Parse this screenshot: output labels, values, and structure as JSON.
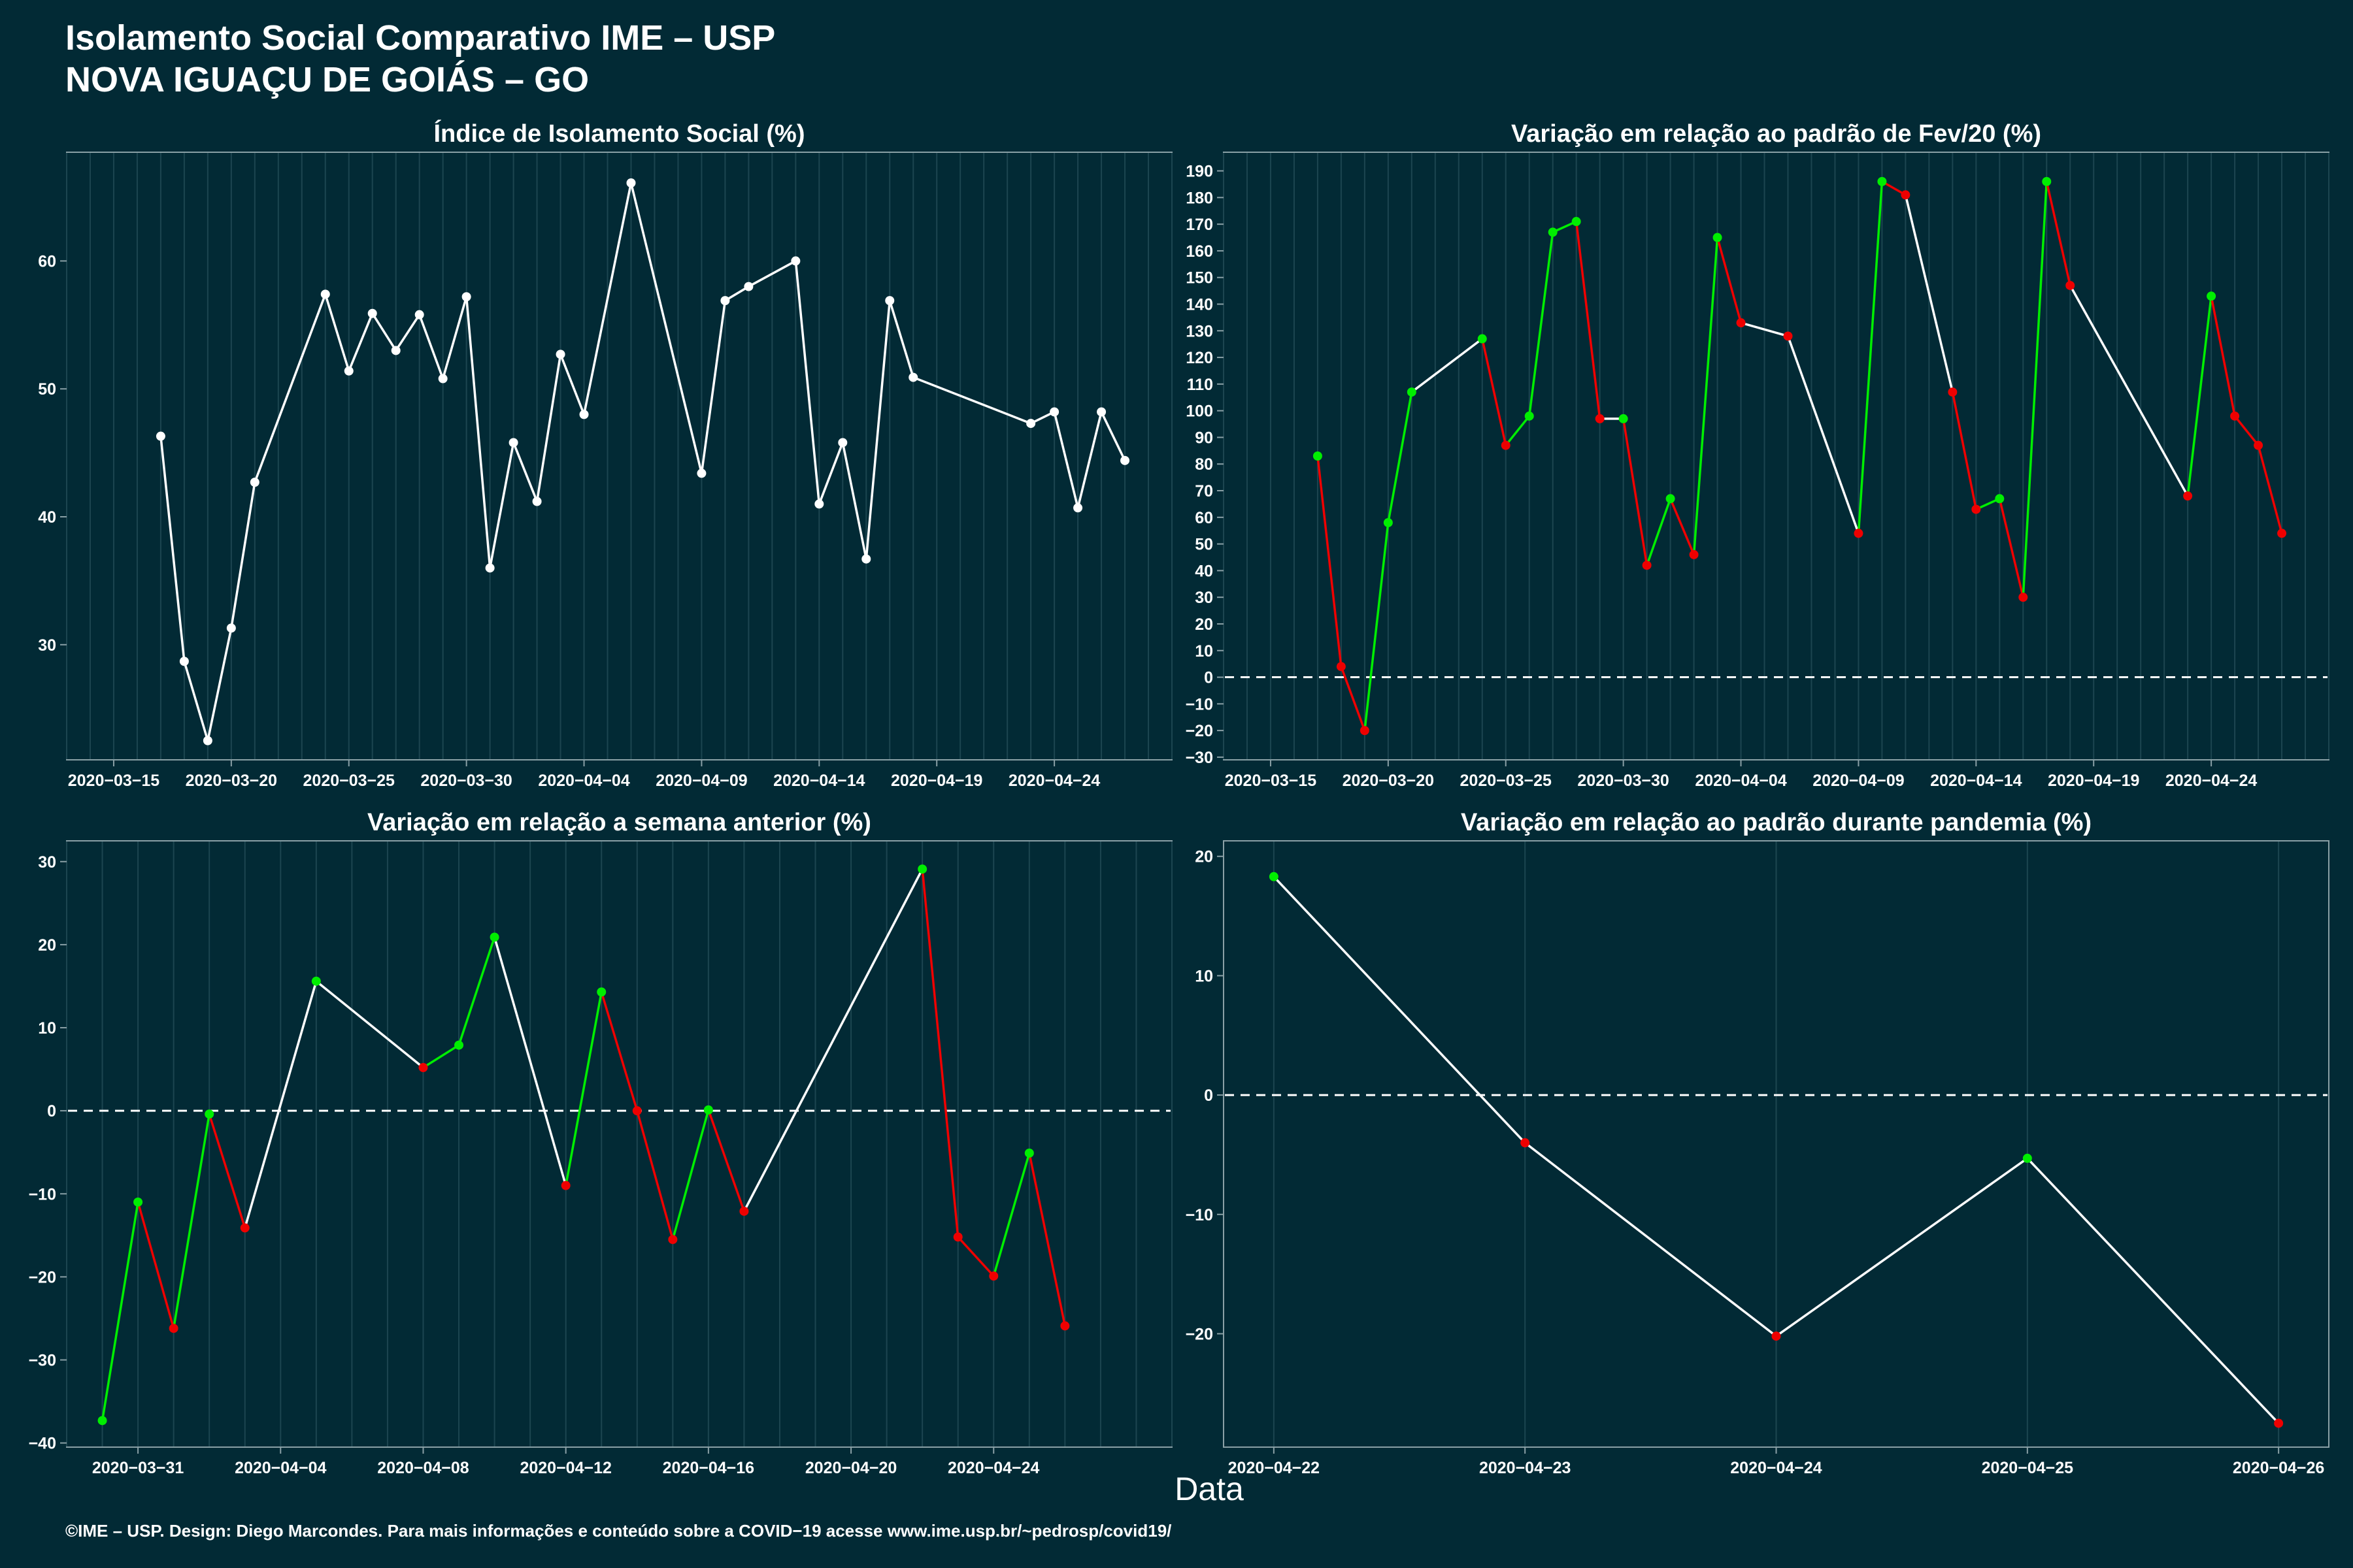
{
  "header": {
    "title_line1": "Isolamento Social Comparativo IME – USP",
    "title_line2": "NOVA IGUAÇU DE GOIÁS – GO"
  },
  "xlabel": "Data",
  "footer": "©IME – USP. Design: Diego Marcondes. Para mais informações e conteúdo sobre a COVID−19 acesse www.ime.usp.br/~pedrosp/covid19/",
  "colors": {
    "background": "#022a35",
    "neutral": "#ffffff",
    "positive": "#00ee00",
    "negative": "#ee0000",
    "grid": "#1c4550",
    "axis": "#8aa0a6"
  },
  "chart_data": [
    {
      "type": "line",
      "title": "Índice de Isolamento Social (%)",
      "xlim": [
        "2020-03-13",
        "2020-04-29"
      ],
      "ylim": [
        21,
        68.5
      ],
      "x_ticks": [
        "2020-03-15",
        "2020-03-20",
        "2020-03-25",
        "2020-03-30",
        "2020-04-04",
        "2020-04-09",
        "2020-04-14",
        "2020-04-19",
        "2020-04-24"
      ],
      "y_ticks": [
        30,
        40,
        50,
        60
      ],
      "reference_zero": false,
      "color_mode": "neutral",
      "points": [
        {
          "x": "2020-03-17",
          "y": 46.3
        },
        {
          "x": "2020-03-18",
          "y": 28.7
        },
        {
          "x": "2020-03-19",
          "y": 22.5
        },
        {
          "x": "2020-03-20",
          "y": 31.3
        },
        {
          "x": "2020-03-21",
          "y": 42.7
        },
        {
          "x": "2020-03-24",
          "y": 57.4
        },
        {
          "x": "2020-03-25",
          "y": 51.4
        },
        {
          "x": "2020-03-26",
          "y": 55.9
        },
        {
          "x": "2020-03-27",
          "y": 53.0
        },
        {
          "x": "2020-03-28",
          "y": 55.8
        },
        {
          "x": "2020-03-29",
          "y": 50.8
        },
        {
          "x": "2020-03-30",
          "y": 57.2
        },
        {
          "x": "2020-03-31",
          "y": 36.0
        },
        {
          "x": "2020-04-01",
          "y": 45.8
        },
        {
          "x": "2020-04-02",
          "y": 41.2
        },
        {
          "x": "2020-04-03",
          "y": 52.7
        },
        {
          "x": "2020-04-04",
          "y": 48.0
        },
        {
          "x": "2020-04-06",
          "y": 66.1
        },
        {
          "x": "2020-04-09",
          "y": 43.4
        },
        {
          "x": "2020-04-10",
          "y": 56.9
        },
        {
          "x": "2020-04-11",
          "y": 58.0
        },
        {
          "x": "2020-04-13",
          "y": 60.0
        },
        {
          "x": "2020-04-14",
          "y": 41.0
        },
        {
          "x": "2020-04-15",
          "y": 45.8
        },
        {
          "x": "2020-04-16",
          "y": 36.7
        },
        {
          "x": "2020-04-17",
          "y": 56.9
        },
        {
          "x": "2020-04-18",
          "y": 50.9
        },
        {
          "x": "2020-04-23",
          "y": 47.3
        },
        {
          "x": "2020-04-24",
          "y": 48.2
        },
        {
          "x": "2020-04-25",
          "y": 40.7
        },
        {
          "x": "2020-04-26",
          "y": 48.2
        },
        {
          "x": "2020-04-27",
          "y": 44.4
        }
      ]
    },
    {
      "type": "line",
      "title": "Variação em relação ao padrão de Fev/20 (%)",
      "xlim": [
        "2020-03-13",
        "2020-04-29"
      ],
      "ylim": [
        -31,
        197
      ],
      "x_ticks": [
        "2020-03-15",
        "2020-03-20",
        "2020-03-25",
        "2020-03-30",
        "2020-04-04",
        "2020-04-09",
        "2020-04-14",
        "2020-04-19",
        "2020-04-24"
      ],
      "y_ticks": [
        -30,
        -20,
        -10,
        0,
        10,
        20,
        30,
        40,
        50,
        60,
        70,
        80,
        90,
        100,
        110,
        120,
        130,
        140,
        150,
        160,
        170,
        180,
        190
      ],
      "reference_zero": true,
      "color_mode": "trend",
      "points": [
        {
          "x": "2020-03-17",
          "y": 83
        },
        {
          "x": "2020-03-18",
          "y": 4
        },
        {
          "x": "2020-03-19",
          "y": -20
        },
        {
          "x": "2020-03-20",
          "y": 58
        },
        {
          "x": "2020-03-21",
          "y": 107
        },
        {
          "x": "2020-03-24",
          "y": 127
        },
        {
          "x": "2020-03-25",
          "y": 87
        },
        {
          "x": "2020-03-26",
          "y": 98
        },
        {
          "x": "2020-03-27",
          "y": 167
        },
        {
          "x": "2020-03-28",
          "y": 171
        },
        {
          "x": "2020-03-29",
          "y": 97
        },
        {
          "x": "2020-03-30",
          "y": 97
        },
        {
          "x": "2020-03-31",
          "y": 42
        },
        {
          "x": "2020-04-01",
          "y": 67
        },
        {
          "x": "2020-04-02",
          "y": 46
        },
        {
          "x": "2020-04-03",
          "y": 165
        },
        {
          "x": "2020-04-04",
          "y": 133
        },
        {
          "x": "2020-04-06",
          "y": 128
        },
        {
          "x": "2020-04-09",
          "y": 54
        },
        {
          "x": "2020-04-10",
          "y": 186
        },
        {
          "x": "2020-04-11",
          "y": 181
        },
        {
          "x": "2020-04-13",
          "y": 107
        },
        {
          "x": "2020-04-14",
          "y": 63
        },
        {
          "x": "2020-04-15",
          "y": 67
        },
        {
          "x": "2020-04-16",
          "y": 30
        },
        {
          "x": "2020-04-17",
          "y": 186
        },
        {
          "x": "2020-04-18",
          "y": 147
        },
        {
          "x": "2020-04-23",
          "y": 68
        },
        {
          "x": "2020-04-24",
          "y": 143
        },
        {
          "x": "2020-04-25",
          "y": 98
        },
        {
          "x": "2020-04-26",
          "y": 87
        },
        {
          "x": "2020-04-27",
          "y": 54
        }
      ]
    },
    {
      "type": "line",
      "title": "Variação em relação a semana anterior (%)",
      "xlim": [
        "2020-03-29",
        "2020-04-29"
      ],
      "ylim": [
        -40.5,
        32.5
      ],
      "x_ticks": [
        "2020-03-31",
        "2020-04-04",
        "2020-04-08",
        "2020-04-12",
        "2020-04-16",
        "2020-04-20",
        "2020-04-24"
      ],
      "y_ticks": [
        -40,
        -30,
        -20,
        -10,
        0,
        10,
        20,
        30
      ],
      "reference_zero": true,
      "color_mode": "trend",
      "points": [
        {
          "x": "2020-03-30",
          "y": -37.3
        },
        {
          "x": "2020-03-31",
          "y": -11.0
        },
        {
          "x": "2020-04-01",
          "y": -26.2
        },
        {
          "x": "2020-04-02",
          "y": -0.4
        },
        {
          "x": "2020-04-03",
          "y": -14.1
        },
        {
          "x": "2020-04-05",
          "y": 15.6
        },
        {
          "x": "2020-04-08",
          "y": 5.2
        },
        {
          "x": "2020-04-09",
          "y": 7.9
        },
        {
          "x": "2020-04-10",
          "y": 20.9
        },
        {
          "x": "2020-04-12",
          "y": -9.0
        },
        {
          "x": "2020-04-13",
          "y": 14.3
        },
        {
          "x": "2020-04-14",
          "y": 0.0
        },
        {
          "x": "2020-04-15",
          "y": -15.5
        },
        {
          "x": "2020-04-16",
          "y": 0.1
        },
        {
          "x": "2020-04-17",
          "y": -12.1
        },
        {
          "x": "2020-04-22",
          "y": 29.1
        },
        {
          "x": "2020-04-23",
          "y": -15.2
        },
        {
          "x": "2020-04-24",
          "y": -19.9
        },
        {
          "x": "2020-04-25",
          "y": -5.1
        },
        {
          "x": "2020-04-26",
          "y": -25.9
        }
      ]
    },
    {
      "type": "line",
      "title": "Variação em relação ao padrão durante pandemia (%)",
      "xlim": [
        "2020-04-21.8",
        "2020-04-26.2"
      ],
      "ylim": [
        -29.5,
        21.3
      ],
      "x_ticks": [
        "2020-04-22",
        "2020-04-23",
        "2020-04-24",
        "2020-04-25",
        "2020-04-26"
      ],
      "y_ticks": [
        -20,
        -10,
        0,
        10,
        20
      ],
      "reference_zero": true,
      "color_mode": "trend",
      "points": [
        {
          "x": "2020-04-22",
          "y": 18.3
        },
        {
          "x": "2020-04-23",
          "y": -4.0
        },
        {
          "x": "2020-04-24",
          "y": -20.2
        },
        {
          "x": "2020-04-25",
          "y": -5.3
        },
        {
          "x": "2020-04-26",
          "y": -27.5
        }
      ]
    }
  ]
}
